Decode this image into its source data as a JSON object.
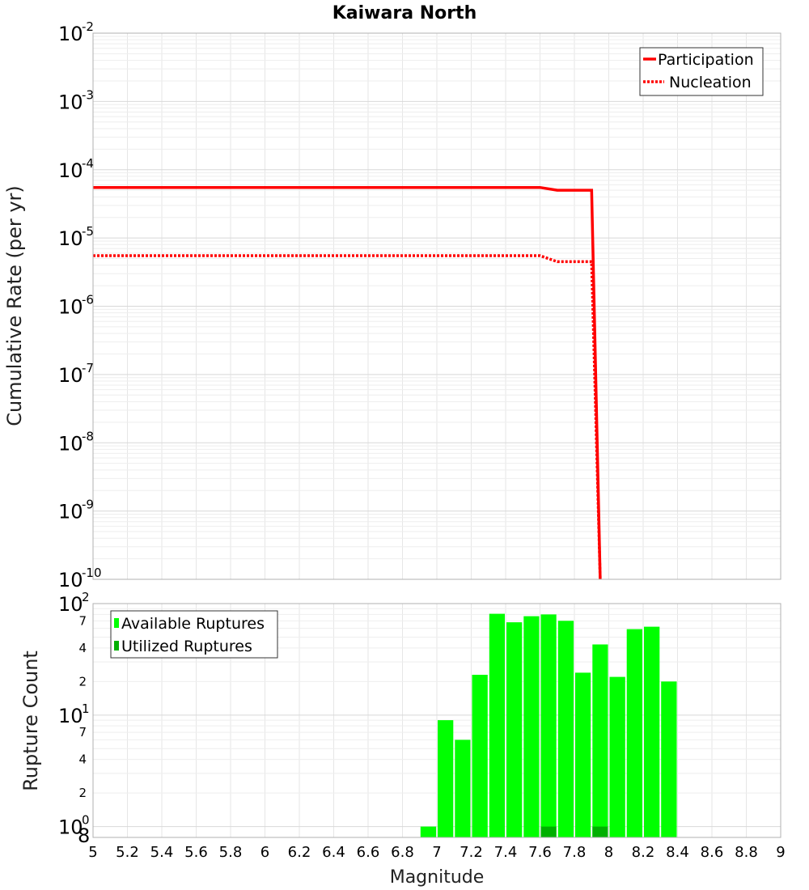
{
  "figure": {
    "title": "Kaiwara North",
    "xlabel": "Magnitude",
    "colors": {
      "participation": "#ff0000",
      "nucleation": "#ff0000",
      "available": "#00ff00",
      "utilized": "#00b000",
      "grid": "#e6e6e6",
      "frame": "#b0b0b0"
    }
  },
  "chart_data": [
    {
      "type": "line",
      "title": "Kaiwara North",
      "xlabel": "Magnitude",
      "ylabel": "Cumulative Rate (per yr)",
      "yscale": "log",
      "xlim": [
        5,
        9
      ],
      "ylim": [
        1e-10,
        0.01
      ],
      "y_decades": [
        {
          "base": "10",
          "exp": "-10"
        },
        {
          "base": "10",
          "exp": "-9"
        },
        {
          "base": "10",
          "exp": "-8"
        },
        {
          "base": "10",
          "exp": "-7"
        },
        {
          "base": "10",
          "exp": "-6"
        },
        {
          "base": "10",
          "exp": "-5"
        },
        {
          "base": "10",
          "exp": "-4"
        },
        {
          "base": "10",
          "exp": "-3"
        },
        {
          "base": "10",
          "exp": "-2"
        }
      ],
      "legend": [
        "Participation",
        "Nucleation"
      ],
      "legend_position": "top-right",
      "series": [
        {
          "name": "Participation",
          "style": "solid",
          "x": [
            5.0,
            7.6,
            7.7,
            7.9,
            7.95,
            7.95
          ],
          "y": [
            5.5e-05,
            5.5e-05,
            5e-05,
            5e-05,
            1e-10,
            1e-10
          ]
        },
        {
          "name": "Nucleation",
          "style": "dotted",
          "x": [
            5.0,
            7.6,
            7.7,
            7.9,
            7.95,
            7.95
          ],
          "y": [
            5.5e-06,
            5.5e-06,
            4.5e-06,
            4.5e-06,
            1e-10,
            1e-10
          ]
        }
      ]
    },
    {
      "type": "bar",
      "xlabel": "Magnitude",
      "ylabel": "Rupture Count",
      "yscale": "log",
      "xlim": [
        5,
        9
      ],
      "ylim": [
        0.8,
        100
      ],
      "x_ticks": [
        "5",
        "5.2",
        "5.4",
        "5.6",
        "5.8",
        "6",
        "6.2",
        "6.4",
        "6.6",
        "6.8",
        "7",
        "7.2",
        "7.4",
        "7.6",
        "7.8",
        "8",
        "8.2",
        "8.4",
        "8.6",
        "8.8",
        "9"
      ],
      "y_decades": [
        {
          "base": "10",
          "exp": "0"
        },
        {
          "base": "10",
          "exp": "1"
        },
        {
          "base": "10",
          "exp": "2"
        }
      ],
      "y_minor_ticks": [
        {
          "value": 2,
          "label": "2"
        },
        {
          "value": 4,
          "label": "4"
        },
        {
          "value": 7,
          "label": "7"
        },
        {
          "value": 20,
          "label": "2"
        },
        {
          "value": 40,
          "label": "4"
        },
        {
          "value": 70,
          "label": "7"
        }
      ],
      "y_bottom_label": "8",
      "legend": [
        "Available Ruptures",
        "Utilized Ruptures"
      ],
      "legend_position": "top-left",
      "bin_width": 0.1,
      "series": [
        {
          "name": "Available Ruptures",
          "x": [
            6.95,
            7.05,
            7.15,
            7.25,
            7.35,
            7.45,
            7.55,
            7.65,
            7.75,
            7.85,
            7.95,
            8.05,
            8.15,
            8.25,
            8.35
          ],
          "values": [
            1,
            9,
            6,
            23,
            81,
            68,
            77,
            80,
            70,
            24,
            43,
            22,
            59,
            62,
            20
          ]
        },
        {
          "name": "Utilized Ruptures",
          "x": [
            7.65,
            7.95
          ],
          "values": [
            1,
            1
          ]
        }
      ]
    }
  ]
}
